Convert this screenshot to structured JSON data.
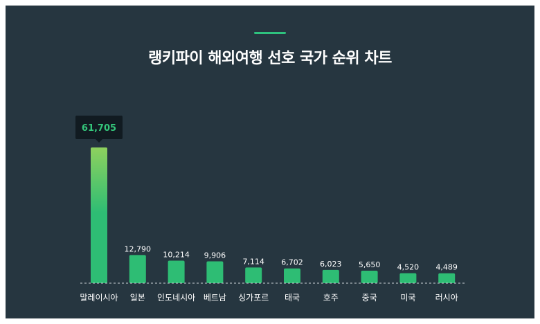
{
  "title": "랭키파이 해외여행 선호 국가 순위 차트",
  "colors": {
    "background": "#263640",
    "bar": "#2ebd74",
    "bar_top_highlight": "#8ed15e",
    "accent": "#2ec27e",
    "tooltip_bg": "#111b21",
    "tooltip_text": "#34c77b"
  },
  "chart_data": {
    "type": "bar",
    "title": "랭키파이 해외여행 선호 국가 순위 차트",
    "categories": [
      "말레이시아",
      "일본",
      "인도네시아",
      "베트남",
      "싱가포르",
      "태국",
      "호주",
      "중국",
      "미국",
      "러시아"
    ],
    "values": [
      61705,
      12790,
      10214,
      9906,
      7114,
      6702,
      6023,
      5650,
      4520,
      4489
    ],
    "value_labels": [
      "61,705",
      "12,790",
      "10,214",
      "9,906",
      "7,114",
      "6,702",
      "6,023",
      "5,650",
      "4,520",
      "4,489"
    ],
    "highlighted_index": 0,
    "ylim": [
      0,
      61705
    ],
    "grid": false,
    "baseline": "dashed"
  }
}
